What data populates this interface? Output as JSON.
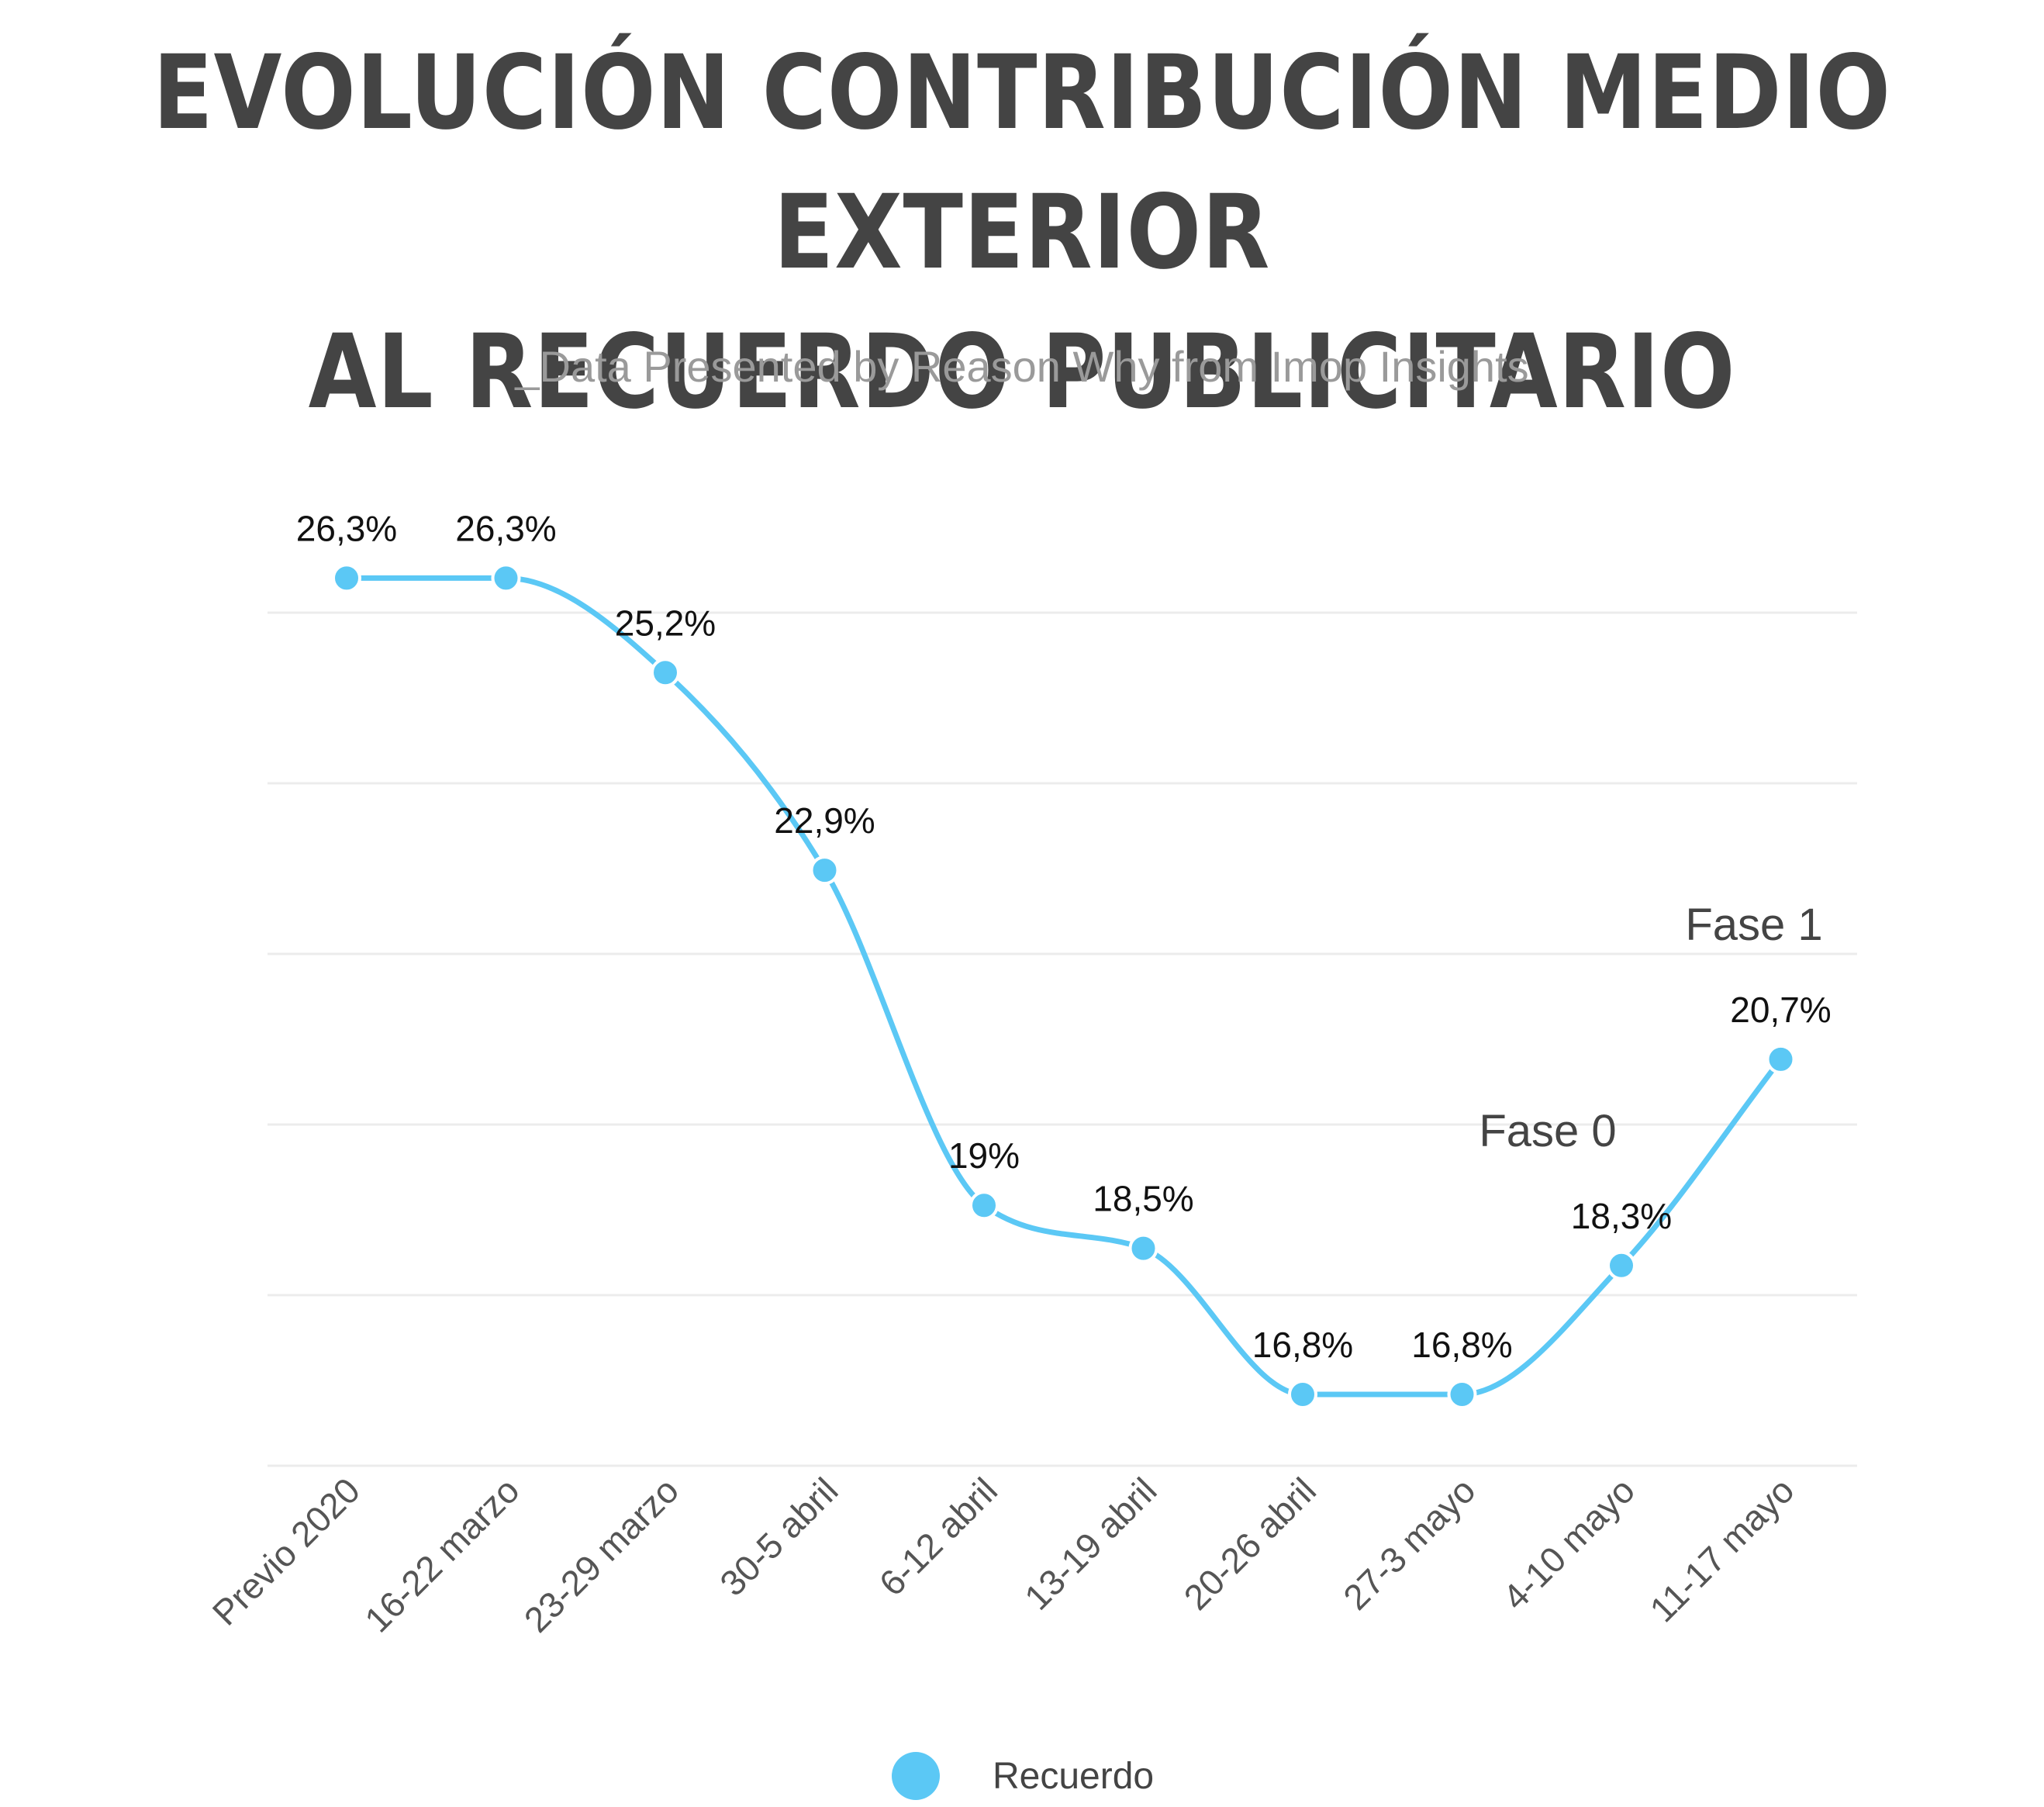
{
  "title": {
    "line1": "EVOLUCIÓN CONTRIBUCIÓN MEDIO EXTERIOR",
    "line2": "AL RECUERDO PUBLICITARIO"
  },
  "subtitle": "_Data Presented by Reason Why from Imop Insights",
  "chart_data": {
    "type": "line",
    "categories": [
      "Previo 2020",
      "16-22 marzo",
      "23-29 marzo",
      "30-5 abril",
      "6-12 abril",
      "13-19 abril",
      "20-26 abril",
      "27-3 mayo",
      "4-10 mayo",
      "11-17 mayo"
    ],
    "series": [
      {
        "name": "Recuerdo",
        "values": [
          26.3,
          26.3,
          25.2,
          22.9,
          19,
          18.5,
          16.8,
          16.8,
          18.3,
          20.7
        ],
        "data_labels": [
          "26,3%",
          "26,3%",
          "25,2%",
          "22,9%",
          "19%",
          "18,5%",
          "16,8%",
          "16,8%",
          "18,3%",
          "20,7%"
        ],
        "color": "#5bc8f5"
      }
    ],
    "annotations": [
      "Fase 0",
      "Fase 1"
    ],
    "grid": true,
    "legend": "bottom-center",
    "line_style": "smooth"
  },
  "legend_label": "Recuerdo"
}
